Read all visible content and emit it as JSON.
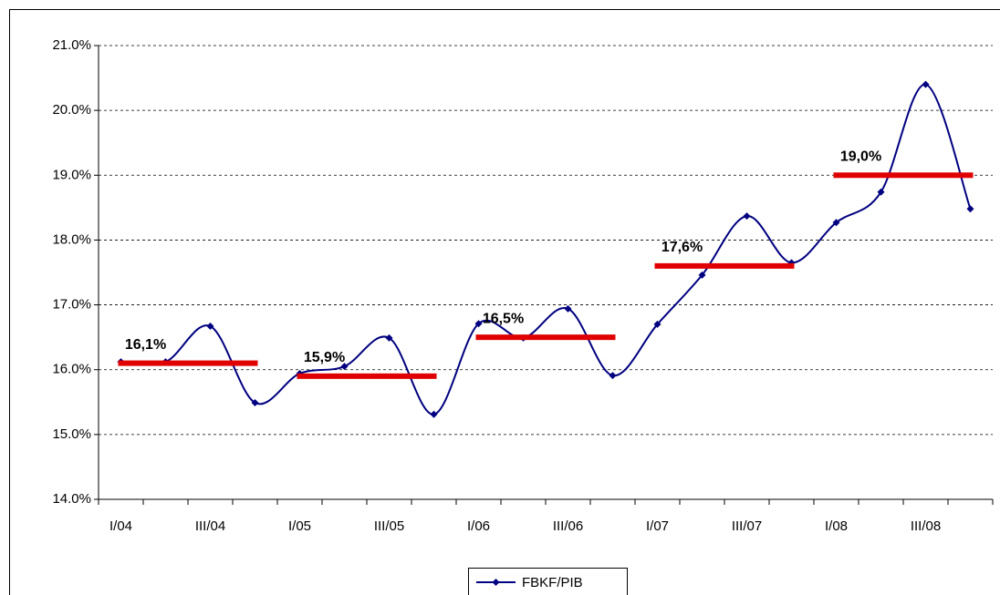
{
  "chart_data": {
    "type": "line",
    "categories": [
      "I/04",
      null,
      "III/04",
      null,
      "I/05",
      null,
      "III/05",
      null,
      "I/06",
      null,
      "III/06",
      null,
      "I/07",
      null,
      "III/07",
      null,
      "I/08",
      null,
      "III/08",
      null
    ],
    "series": [
      {
        "name": "FBKF/PIB",
        "color": "#000080",
        "values": [
          16.12,
          16.12,
          16.67,
          15.49,
          15.94,
          16.05,
          16.49,
          15.31,
          16.71,
          16.49,
          16.94,
          15.91,
          16.7,
          17.46,
          18.37,
          17.65,
          18.27,
          18.74,
          20.4,
          18.48
        ]
      }
    ],
    "annual_averages": {
      "color": "#e00000",
      "values": [
        16.1,
        15.9,
        16.5,
        17.6,
        19.0
      ],
      "value_labels": [
        "16,1%",
        "15,9%",
        "16,5%",
        "17,6%",
        "19,0%"
      ]
    },
    "ylim": [
      14,
      21
    ],
    "yticks": [
      {
        "value": 14,
        "label": "14.0%"
      },
      {
        "value": 15,
        "label": "15.0%"
      },
      {
        "value": 16,
        "label": "16.0%"
      },
      {
        "value": 17,
        "label": "17.0%"
      },
      {
        "value": 18,
        "label": "18.0%"
      },
      {
        "value": 19,
        "label": "19.0%"
      },
      {
        "value": 20,
        "label": "20.0%"
      },
      {
        "value": 21,
        "label": "21.0%"
      }
    ],
    "grid": true,
    "legend": "bottom"
  }
}
